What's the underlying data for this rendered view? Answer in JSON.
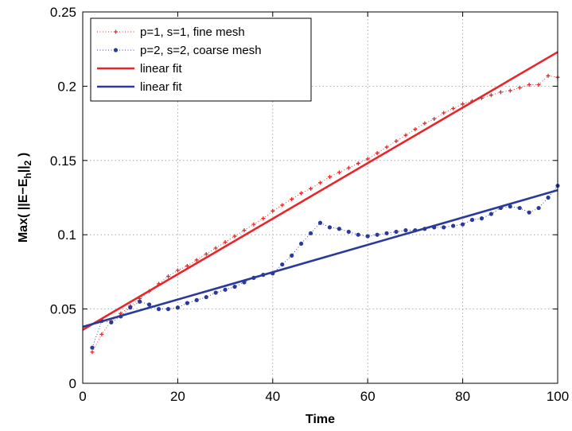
{
  "chart_data": {
    "type": "line",
    "xlabel": "Time",
    "ylabel": {
      "prefix": "Max( ||E−E",
      "sub_h": "h",
      "mid": "||",
      "sub_2": "2",
      "suffix": " )"
    },
    "xlim": [
      0,
      100
    ],
    "ylim": [
      0,
      0.25
    ],
    "xticks": [
      0,
      20,
      40,
      60,
      80,
      100
    ],
    "yticks": [
      0,
      0.05,
      0.1,
      0.15,
      0.2,
      0.25
    ],
    "xtick_labels": [
      "0",
      "20",
      "40",
      "60",
      "80",
      "100"
    ],
    "ytick_labels": [
      "0",
      "0.05",
      "0.1",
      "0.15",
      "0.2",
      "0.25"
    ],
    "grid": true,
    "legend_position": "top-left",
    "series": [
      {
        "name": "p=1, s=1, fine mesh",
        "style": "dotted-plus",
        "color": "#e8262a",
        "x": [
          2,
          4,
          6,
          8,
          10,
          12,
          14,
          16,
          18,
          20,
          22,
          24,
          26,
          28,
          30,
          32,
          34,
          36,
          38,
          40,
          42,
          44,
          46,
          48,
          50,
          52,
          54,
          56,
          58,
          60,
          62,
          64,
          66,
          68,
          70,
          72,
          74,
          76,
          78,
          80,
          82,
          84,
          86,
          88,
          90,
          92,
          94,
          96,
          98,
          100
        ],
        "y": [
          0.021,
          0.033,
          0.042,
          0.047,
          0.052,
          0.057,
          0.062,
          0.067,
          0.072,
          0.076,
          0.079,
          0.083,
          0.087,
          0.091,
          0.095,
          0.099,
          0.103,
          0.107,
          0.111,
          0.116,
          0.12,
          0.124,
          0.128,
          0.131,
          0.135,
          0.139,
          0.142,
          0.145,
          0.148,
          0.151,
          0.155,
          0.159,
          0.163,
          0.167,
          0.171,
          0.175,
          0.178,
          0.182,
          0.185,
          0.188,
          0.19,
          0.192,
          0.194,
          0.196,
          0.197,
          0.199,
          0.201,
          0.201,
          0.207,
          0.206
        ]
      },
      {
        "name": "p=2, s=2, coarse mesh",
        "style": "dotted-dot",
        "color": "#2a3a9a",
        "x": [
          2,
          4,
          6,
          8,
          10,
          12,
          14,
          16,
          18,
          20,
          22,
          24,
          26,
          28,
          30,
          32,
          34,
          36,
          38,
          40,
          42,
          44,
          46,
          48,
          50,
          52,
          54,
          56,
          58,
          60,
          62,
          64,
          66,
          68,
          70,
          72,
          74,
          76,
          78,
          80,
          82,
          84,
          86,
          88,
          90,
          92,
          94,
          96,
          98,
          100
        ],
        "y": [
          0.024,
          0.042,
          0.041,
          0.045,
          0.051,
          0.055,
          0.053,
          0.05,
          0.05,
          0.051,
          0.054,
          0.056,
          0.058,
          0.061,
          0.063,
          0.065,
          0.068,
          0.071,
          0.073,
          0.074,
          0.08,
          0.086,
          0.094,
          0.101,
          0.108,
          0.105,
          0.104,
          0.102,
          0.1,
          0.099,
          0.1,
          0.101,
          0.102,
          0.103,
          0.103,
          0.104,
          0.105,
          0.105,
          0.106,
          0.107,
          0.11,
          0.111,
          0.114,
          0.118,
          0.119,
          0.118,
          0.115,
          0.118,
          0.125,
          0.133
        ]
      },
      {
        "name": "linear fit",
        "style": "solid",
        "color": "#e8262a",
        "x": [
          0,
          100
        ],
        "y": [
          0.036,
          0.223
        ]
      },
      {
        "name": "linear fit",
        "style": "solid",
        "color": "#2a3a9a",
        "x": [
          0,
          100
        ],
        "y": [
          0.038,
          0.13
        ]
      }
    ]
  }
}
